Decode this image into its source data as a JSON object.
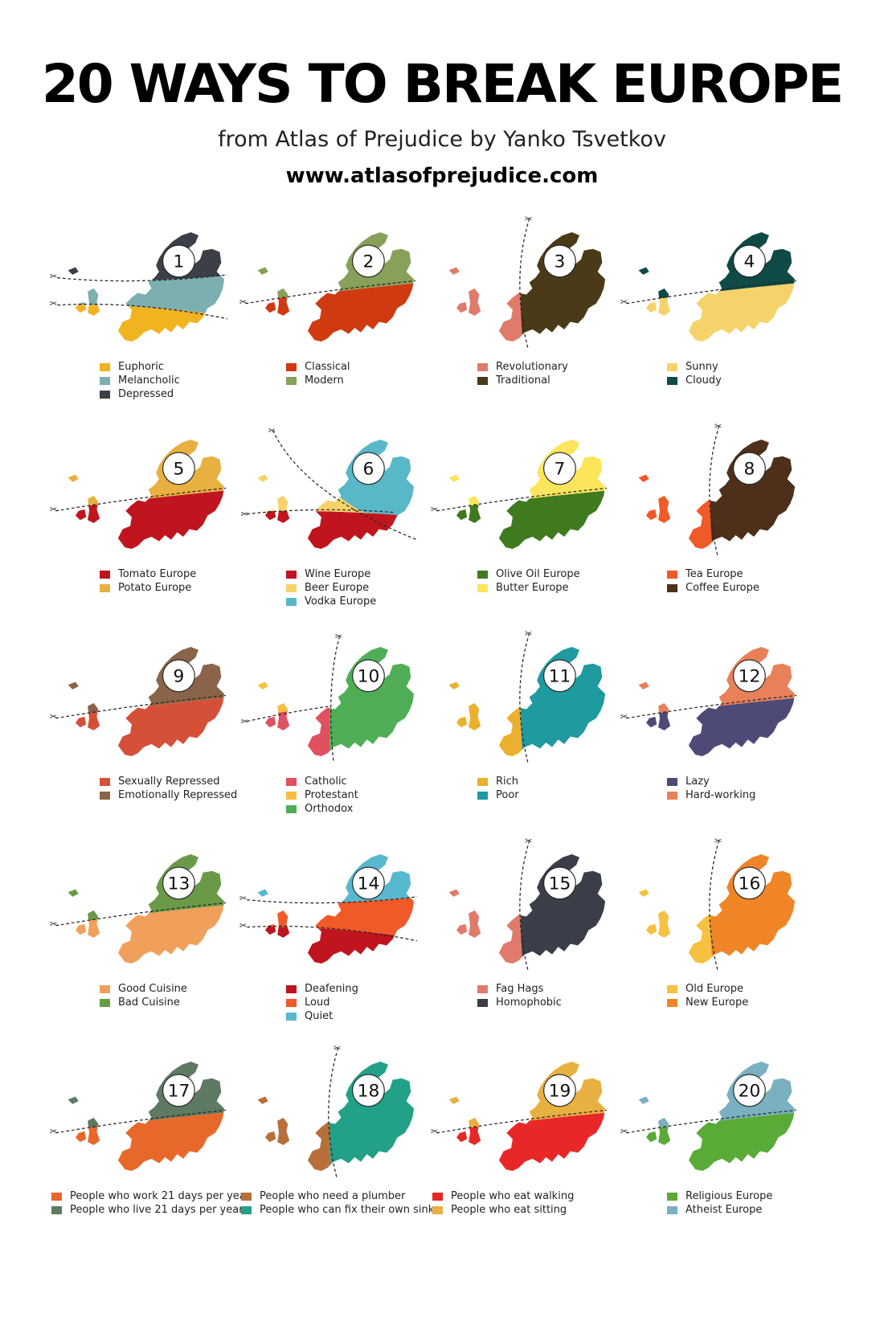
{
  "header": {
    "title": "20 WAYS TO BREAK EUROPE",
    "subtitle": "from Atlas of Prejudice by Yanko Tsvetkov",
    "url": "www.atlasofprejudice.com"
  },
  "maps": [
    {
      "number": "1",
      "split": "h3",
      "legend": [
        {
          "label": "Euphoric",
          "color": "#F2B320"
        },
        {
          "label": "Melancholic",
          "color": "#7BAFB0"
        },
        {
          "label": "Depressed",
          "color": "#3C3F48"
        }
      ]
    },
    {
      "number": "2",
      "split": "h",
      "legend": [
        {
          "label": "Classical",
          "color": "#D03A10"
        },
        {
          "label": "Modern",
          "color": "#87A05A"
        }
      ]
    },
    {
      "number": "3",
      "split": "v",
      "legend": [
        {
          "label": "Revolutionary",
          "color": "#E07A6A"
        },
        {
          "label": "Traditional",
          "color": "#4A3A18"
        }
      ]
    },
    {
      "number": "4",
      "split": "h",
      "legend": [
        {
          "label": "Sunny",
          "color": "#F6D36A"
        },
        {
          "label": "Cloudy",
          "color": "#0F4A47"
        }
      ]
    },
    {
      "number": "5",
      "split": "h",
      "legend": [
        {
          "label": "Tomato Europe",
          "color": "#C0151E"
        },
        {
          "label": "Potato Europe",
          "color": "#E8B040"
        }
      ]
    },
    {
      "number": "6",
      "split": "d3",
      "legend": [
        {
          "label": "Wine Europe",
          "color": "#C0151E"
        },
        {
          "label": "Beer Europe",
          "color": "#F6D36A"
        },
        {
          "label": "Vodka Europe",
          "color": "#58B8C8"
        }
      ]
    },
    {
      "number": "7",
      "split": "h",
      "legend": [
        {
          "label": "Olive Oil Europe",
          "color": "#3F7A1F"
        },
        {
          "label": "Butter Europe",
          "color": "#FCE55A"
        }
      ]
    },
    {
      "number": "8",
      "split": "v",
      "legend": [
        {
          "label": "Tea Europe",
          "color": "#F05A28"
        },
        {
          "label": "Coffee Europe",
          "color": "#4E2F1A"
        }
      ]
    },
    {
      "number": "9",
      "split": "h",
      "legend": [
        {
          "label": "Sexually Repressed",
          "color": "#D55038"
        },
        {
          "label": "Emotionally Repressed",
          "color": "#8A6448"
        }
      ]
    },
    {
      "number": "10",
      "split": "v3",
      "legend": [
        {
          "label": "Catholic",
          "color": "#E0505E"
        },
        {
          "label": "Protestant",
          "color": "#F5C042"
        },
        {
          "label": "Orthodox",
          "color": "#4FAE55"
        }
      ]
    },
    {
      "number": "11",
      "split": "v",
      "legend": [
        {
          "label": "Rich",
          "color": "#EAB02E"
        },
        {
          "label": "Poor",
          "color": "#1E9AA0"
        }
      ]
    },
    {
      "number": "12",
      "split": "h",
      "legend": [
        {
          "label": "Lazy",
          "color": "#4E4A78"
        },
        {
          "label": "Hard-working",
          "color": "#E8805A"
        }
      ]
    },
    {
      "number": "13",
      "split": "h",
      "legend": [
        {
          "label": "Good Cuisine",
          "color": "#F0A05A"
        },
        {
          "label": "Bad Cuisine",
          "color": "#6A9A48"
        }
      ]
    },
    {
      "number": "14",
      "split": "h3",
      "legend": [
        {
          "label": "Deafening",
          "color": "#C0151E"
        },
        {
          "label": "Loud",
          "color": "#F05A28"
        },
        {
          "label": "Quiet",
          "color": "#58B8D0"
        }
      ]
    },
    {
      "number": "15",
      "split": "v",
      "legend": [
        {
          "label": "Fag Hags",
          "color": "#E07A6A"
        },
        {
          "label": "Homophobic",
          "color": "#3A3E48"
        }
      ]
    },
    {
      "number": "16",
      "split": "v",
      "legend": [
        {
          "label": "Old Europe",
          "color": "#F6C040"
        },
        {
          "label": "New Europe",
          "color": "#F08528"
        }
      ]
    },
    {
      "number": "17",
      "split": "h",
      "legend": [
        {
          "label": "People who work 21 days per year",
          "color": "#E8682A"
        },
        {
          "label": "People who live 21 days per year",
          "color": "#5E7A62"
        }
      ]
    },
    {
      "number": "18",
      "split": "v",
      "legend": [
        {
          "label": "People who need a plumber",
          "color": "#B8703A"
        },
        {
          "label": "People who can fix their own sink",
          "color": "#22A088"
        }
      ]
    },
    {
      "number": "19",
      "split": "h",
      "legend": [
        {
          "label": "People who eat walking",
          "color": "#E82828"
        },
        {
          "label": "People who eat sitting",
          "color": "#E8B040"
        }
      ]
    },
    {
      "number": "20",
      "split": "h",
      "legend": [
        {
          "label": "Religious Europe",
          "color": "#5AAA38"
        },
        {
          "label": "Atheist Europe",
          "color": "#7AB0C0"
        }
      ]
    }
  ]
}
